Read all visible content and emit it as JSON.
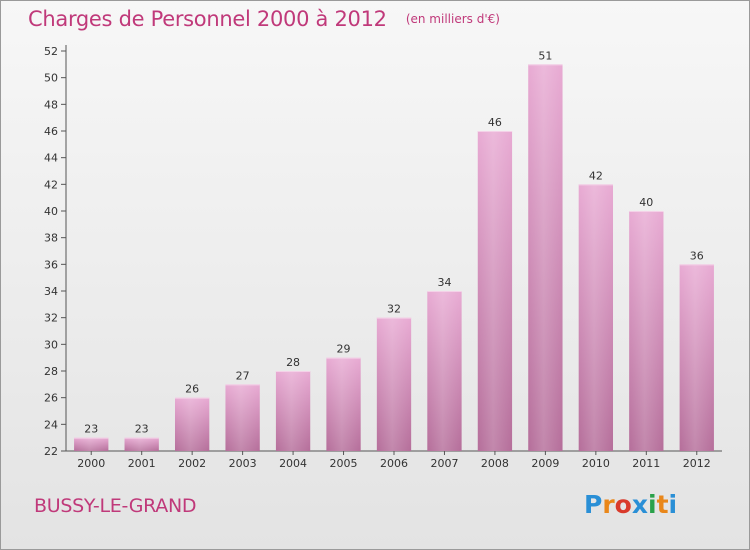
{
  "chart_data": {
    "type": "bar",
    "title": "Charges de Personnel 2000 à 2012",
    "subtitle": "(en milliers d'€)",
    "categories": [
      "2000",
      "2001",
      "2002",
      "2003",
      "2004",
      "2005",
      "2006",
      "2007",
      "2008",
      "2009",
      "2010",
      "2011",
      "2012"
    ],
    "values": [
      23,
      23,
      26,
      27,
      28,
      29,
      32,
      34,
      46,
      51,
      42,
      40,
      36
    ],
    "ylim": [
      22,
      52
    ],
    "yticks": [
      22,
      24,
      26,
      28,
      30,
      32,
      34,
      36,
      38,
      40,
      42,
      44,
      46,
      48,
      50,
      52
    ],
    "xlabel": "",
    "ylabel": "",
    "grid": false,
    "bar_color": "#d88bb8"
  },
  "footer": {
    "commune": "BUSSY-LE-GRAND",
    "logo_text": "Proxiti",
    "logo_colors": [
      "#2a8fd6",
      "#e9871a",
      "#d93a2b",
      "#2a8fd6",
      "#2aa14a",
      "#e9871a",
      "#2a8fd6"
    ]
  }
}
